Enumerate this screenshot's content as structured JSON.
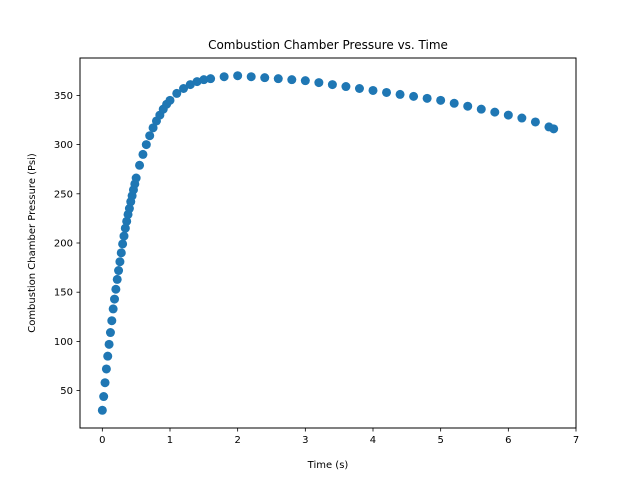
{
  "chart_data": {
    "type": "scatter",
    "title": "Combustion Chamber Pressure vs. Time",
    "xlabel": "Time (s)",
    "ylabel": "Combustion Chamber Pressure (Psi)",
    "xlim": [
      -0.33,
      7.0
    ],
    "ylim": [
      12,
      388
    ],
    "xticks": [
      0,
      1,
      2,
      3,
      4,
      5,
      6,
      7
    ],
    "yticks": [
      50,
      100,
      150,
      200,
      250,
      300,
      350
    ],
    "grid": false,
    "legend": "none",
    "marker_color": "#1f77b4",
    "series": [
      {
        "x": [
          0.0,
          0.02,
          0.04,
          0.06,
          0.08,
          0.1,
          0.12,
          0.14,
          0.16,
          0.18,
          0.2,
          0.22,
          0.24,
          0.26,
          0.28,
          0.3,
          0.32,
          0.34,
          0.36,
          0.38,
          0.4,
          0.42,
          0.44,
          0.46,
          0.48,
          0.5,
          0.55,
          0.6,
          0.65,
          0.7,
          0.75,
          0.8,
          0.85,
          0.9,
          0.95,
          1.0,
          1.1,
          1.2,
          1.3,
          1.4,
          1.5,
          1.6,
          1.8,
          2.0,
          2.2,
          2.4,
          2.6,
          2.8,
          3.0,
          3.2,
          3.4,
          3.6,
          3.8,
          4.0,
          4.2,
          4.4,
          4.6,
          4.8,
          5.0,
          5.2,
          5.4,
          5.6,
          5.8,
          6.0,
          6.2,
          6.4,
          6.6,
          6.67
        ],
        "y": [
          30,
          44,
          58,
          72,
          85,
          97,
          109,
          121,
          133,
          143,
          153,
          163,
          172,
          181,
          190,
          199,
          207,
          215,
          222,
          229,
          235,
          242,
          248,
          254,
          260,
          266,
          279,
          290,
          300,
          309,
          317,
          324,
          330,
          336,
          341,
          345,
          352,
          357,
          361,
          364,
          366,
          367,
          369,
          370,
          369,
          368,
          367,
          366,
          365,
          363,
          361,
          359,
          357,
          355,
          353,
          351,
          349,
          347,
          345,
          342,
          339,
          336,
          333,
          330,
          327,
          323,
          318,
          316
        ]
      }
    ]
  }
}
